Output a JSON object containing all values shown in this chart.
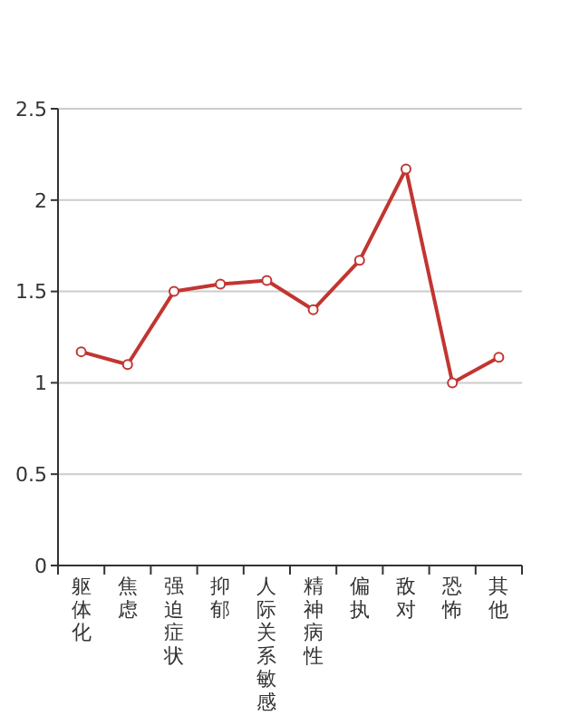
{
  "chart_data": {
    "type": "line",
    "categories": [
      "躯体化",
      "焦虑",
      "强迫症状",
      "抑郁",
      "人际关系敏感",
      "精神病性",
      "偏执",
      "敌对",
      "恐怖",
      "其他"
    ],
    "series": [
      {
        "color": "#c23531",
        "values": [
          1.17,
          1.1,
          1.5,
          1.54,
          1.56,
          1.4,
          1.67,
          2.17,
          1.0,
          1.14
        ]
      }
    ],
    "ylim": [
      0,
      2.5
    ],
    "yticks": [
      0,
      0.5,
      1,
      1.5,
      2,
      2.5
    ],
    "grid": "y",
    "marker": "circle",
    "line_style": "solid"
  }
}
